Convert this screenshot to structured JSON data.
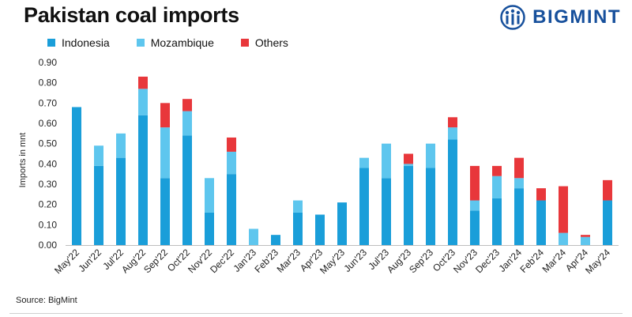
{
  "header": {
    "title": "Pakistan coal imports",
    "brand": "BIGMINT"
  },
  "footer": {
    "source": "Source: BigMint"
  },
  "colors": {
    "Indonesia": "#1a9ed9",
    "Mozambique": "#5ec6ee",
    "Others": "#e8373b",
    "brand": "#17509c"
  },
  "chart_data": {
    "type": "bar",
    "stacked": true,
    "title": "Pakistan coal imports",
    "ylabel": "Imports in mnt",
    "xlabel": "",
    "ylim": [
      0,
      0.9
    ],
    "yticks": [
      "0.00",
      "0.10",
      "0.20",
      "0.30",
      "0.40",
      "0.50",
      "0.60",
      "0.70",
      "0.80",
      "0.90"
    ],
    "legend_position": "top-left",
    "grid": false,
    "categories": [
      "May'22",
      "Jun'22",
      "Jul'22",
      "Aug'22",
      "Sep'22",
      "Oct'22",
      "Nov'22",
      "Dec'22",
      "Jan'23",
      "Feb'23",
      "Mar'23",
      "Apr'23",
      "May'23",
      "Jun'23",
      "Jul'23",
      "Aug'23",
      "Sep'23",
      "Oct'23",
      "Nov'23",
      "Dec'23",
      "Jan'24",
      "Feb'24",
      "Mar'24",
      "Apr'24",
      "May'24"
    ],
    "series": [
      {
        "name": "Indonesia",
        "values": [
          0.68,
          0.39,
          0.43,
          0.64,
          0.33,
          0.54,
          0.16,
          0.35,
          0.0,
          0.05,
          0.16,
          0.15,
          0.21,
          0.38,
          0.33,
          0.39,
          0.38,
          0.52,
          0.17,
          0.23,
          0.28,
          0.22,
          0.0,
          0.0,
          0.22
        ]
      },
      {
        "name": "Mozambique",
        "values": [
          0.0,
          0.1,
          0.12,
          0.13,
          0.25,
          0.12,
          0.17,
          0.11,
          0.08,
          0.0,
          0.06,
          0.0,
          0.0,
          0.05,
          0.17,
          0.01,
          0.12,
          0.06,
          0.05,
          0.11,
          0.05,
          0.0,
          0.06,
          0.04,
          0.0
        ]
      },
      {
        "name": "Others",
        "values": [
          0.0,
          0.0,
          0.0,
          0.06,
          0.12,
          0.06,
          0.0,
          0.07,
          0.0,
          0.0,
          0.0,
          0.0,
          0.0,
          0.0,
          0.0,
          0.05,
          0.0,
          0.05,
          0.17,
          0.05,
          0.1,
          0.06,
          0.23,
          0.01,
          0.1
        ]
      }
    ]
  }
}
